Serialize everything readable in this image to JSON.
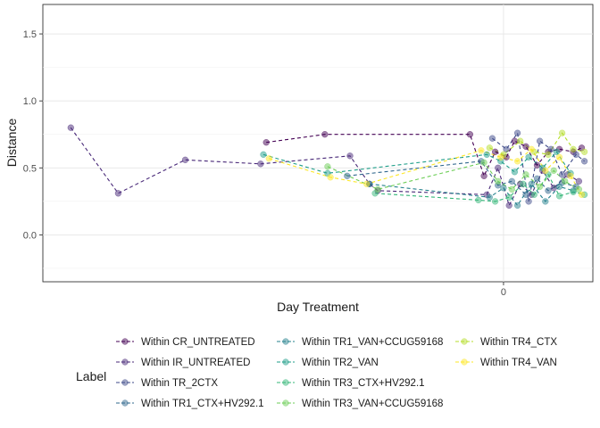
{
  "chart_data": {
    "type": "scatter",
    "title": "",
    "xlabel": "Day Treatment",
    "ylabel": "Distance",
    "ylim": [
      -0.35,
      1.72
    ],
    "xlim": [
      -16.5,
      3.2
    ],
    "x_ticks": [
      {
        "value": 0,
        "label": "0"
      }
    ],
    "y_ticks": [
      {
        "value": 0.0,
        "label": "0.0"
      },
      {
        "value": 0.5,
        "label": "0.5"
      },
      {
        "value": 1.0,
        "label": "1.0"
      },
      {
        "value": 1.5,
        "label": "1.5"
      }
    ],
    "grid": true,
    "legend_title": "Label",
    "legend_position": "bottom",
    "series": [
      {
        "name": "Within CR_UNTREATED",
        "color": "#440154",
        "points": [
          [
            -8.5,
            0.69
          ],
          [
            -6.4,
            0.75
          ],
          [
            -1.2,
            0.75
          ],
          [
            -0.7,
            0.44
          ],
          [
            -0.3,
            0.62
          ],
          [
            0.1,
            0.58
          ],
          [
            0.4,
            0.7
          ],
          [
            0.8,
            0.66
          ],
          [
            1.2,
            0.52
          ],
          [
            1.6,
            0.62
          ],
          [
            2.0,
            0.64
          ],
          [
            2.5,
            0.62
          ],
          [
            2.8,
            0.65
          ]
        ]
      },
      {
        "name": "Within IR_UNTREATED",
        "color": "#482878",
        "points": [
          [
            -15.5,
            0.8
          ],
          [
            -13.8,
            0.31
          ],
          [
            -11.4,
            0.56
          ],
          [
            -8.7,
            0.53
          ],
          [
            -5.5,
            0.59
          ],
          [
            -4.8,
            0.38
          ],
          [
            -4.5,
            0.33
          ],
          [
            -0.6,
            0.3
          ],
          [
            -0.2,
            0.5
          ],
          [
            0.2,
            0.22
          ],
          [
            0.6,
            0.38
          ],
          [
            1.0,
            0.3
          ],
          [
            1.4,
            0.48
          ],
          [
            1.8,
            0.35
          ],
          [
            2.3,
            0.45
          ],
          [
            2.7,
            0.4
          ]
        ]
      },
      {
        "name": "Within TR_2CTX",
        "color": "#3e4a89",
        "points": [
          [
            -0.4,
            0.72
          ],
          [
            0.1,
            0.64
          ],
          [
            0.5,
            0.76
          ],
          [
            0.9,
            0.25
          ],
          [
            1.3,
            0.7
          ],
          [
            1.7,
            0.64
          ],
          [
            2.1,
            0.45
          ],
          [
            2.6,
            0.6
          ],
          [
            2.9,
            0.55
          ]
        ]
      },
      {
        "name": "Within TR1_CTX+HV292.1",
        "color": "#31688e",
        "points": [
          [
            -5.6,
            0.44
          ],
          [
            -0.8,
            0.55
          ],
          [
            -0.2,
            0.37
          ],
          [
            0.3,
            0.4
          ],
          [
            0.8,
            0.3
          ],
          [
            1.2,
            0.42
          ],
          [
            1.6,
            0.33
          ],
          [
            2.1,
            0.39
          ],
          [
            2.6,
            0.36
          ]
        ]
      },
      {
        "name": "Within TR1_VAN+CCUG59168",
        "color": "#26828e",
        "points": [
          [
            -4.8,
            0.38
          ],
          [
            -0.5,
            0.28
          ],
          [
            0.0,
            0.35
          ],
          [
            0.5,
            0.22
          ],
          [
            1.0,
            0.38
          ],
          [
            1.5,
            0.25
          ],
          [
            2.0,
            0.36
          ],
          [
            2.5,
            0.33
          ]
        ]
      },
      {
        "name": "Within TR2_VAN",
        "color": "#1f9e89",
        "points": [
          [
            -8.6,
            0.6
          ],
          [
            -6.3,
            0.46
          ],
          [
            -0.6,
            0.6
          ],
          [
            -0.1,
            0.55
          ],
          [
            0.4,
            0.47
          ],
          [
            0.9,
            0.58
          ],
          [
            1.4,
            0.5
          ],
          [
            1.9,
            0.62
          ],
          [
            2.4,
            0.46
          ]
        ]
      },
      {
        "name": "Within TR3_CTX+HV292.1",
        "color": "#35b779",
        "points": [
          [
            -4.6,
            0.31
          ],
          [
            -0.9,
            0.26
          ],
          [
            -0.3,
            0.25
          ],
          [
            0.2,
            0.28
          ],
          [
            0.7,
            0.38
          ],
          [
            1.1,
            0.3
          ],
          [
            1.6,
            0.45
          ],
          [
            2.0,
            0.29
          ],
          [
            2.5,
            0.32
          ],
          [
            2.9,
            0.3
          ]
        ]
      },
      {
        "name": "Within TR3_VAN+CCUG59168",
        "color": "#6ece58",
        "points": [
          [
            -6.3,
            0.51
          ],
          [
            -4.5,
            0.34
          ],
          [
            -0.7,
            0.54
          ],
          [
            -0.2,
            0.4
          ],
          [
            0.3,
            0.34
          ],
          [
            0.8,
            0.45
          ],
          [
            1.3,
            0.36
          ],
          [
            1.8,
            0.48
          ],
          [
            2.2,
            0.4
          ],
          [
            2.7,
            0.34
          ]
        ]
      },
      {
        "name": "Within TR4_CTX",
        "color": "#b5de2b",
        "points": [
          [
            -0.5,
            0.65
          ],
          [
            0.0,
            0.6
          ],
          [
            0.6,
            0.7
          ],
          [
            1.1,
            0.62
          ],
          [
            1.6,
            0.6
          ],
          [
            2.1,
            0.76
          ],
          [
            2.5,
            0.64
          ],
          [
            2.9,
            0.62
          ]
        ]
      },
      {
        "name": "Within TR4_VAN",
        "color": "#fde725",
        "points": [
          [
            -8.4,
            0.57
          ],
          [
            -6.2,
            0.43
          ],
          [
            -4.9,
            0.38
          ],
          [
            -0.8,
            0.63
          ],
          [
            -0.1,
            0.58
          ],
          [
            0.5,
            0.55
          ],
          [
            1.0,
            0.64
          ],
          [
            1.5,
            0.48
          ],
          [
            2.0,
            0.58
          ],
          [
            2.4,
            0.44
          ],
          [
            2.8,
            0.3
          ]
        ]
      }
    ]
  }
}
